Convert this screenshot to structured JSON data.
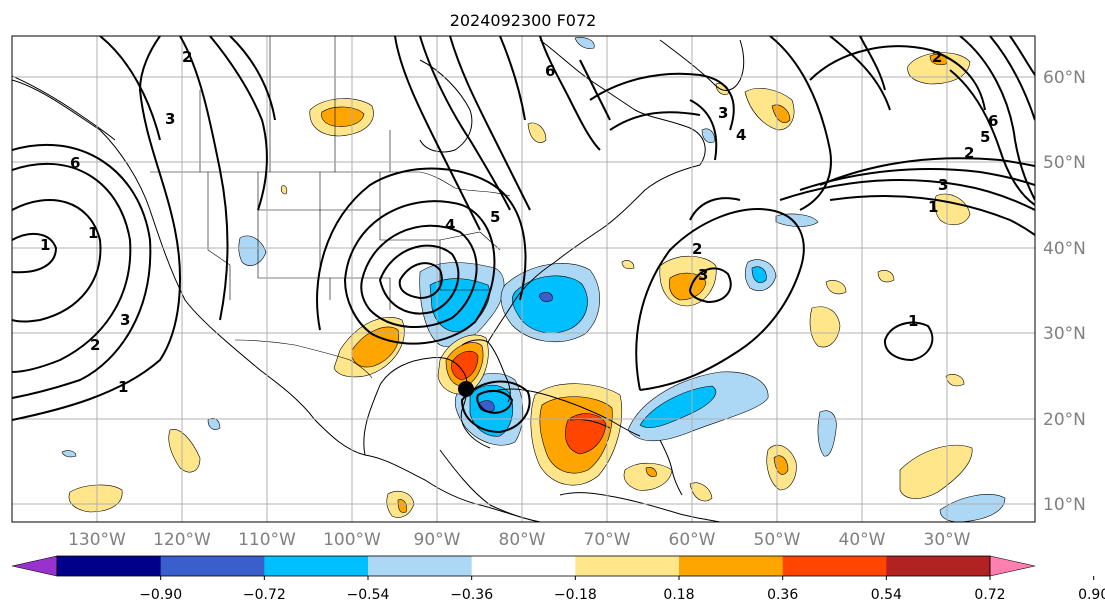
{
  "title": "2024092300 F072",
  "latitude_labels": [
    "60°N",
    "50°N",
    "40°N",
    "30°N",
    "20°N",
    "10°N"
  ],
  "longitude_labels": [
    "130°W",
    "120°W",
    "110°W",
    "100°W",
    "90°W",
    "80°W",
    "70°W",
    "60°W",
    "50°W",
    "40°W",
    "30°W"
  ],
  "contour_labels": [
    "6",
    "1",
    "2",
    "3",
    "1",
    "1",
    "2",
    "3",
    "4",
    "5",
    "6",
    "2",
    "3",
    "4",
    "5",
    "6",
    "1",
    "2",
    "3",
    "3",
    "1",
    "2"
  ],
  "colorbar": {
    "tick_labels": [
      "−0.90",
      "−0.72",
      "−0.54",
      "−0.36",
      "−0.18",
      "0.18",
      "0.36",
      "0.54",
      "0.72",
      "0.90"
    ],
    "colors": [
      "#9932cc",
      "#00008b",
      "#3a5fcd",
      "#00bfff",
      "#add8f5",
      "#ffffff",
      "#ffe68a",
      "#ffa500",
      "#ff4500",
      "#b22222",
      "#ff80b0"
    ]
  },
  "colors": {
    "contour": "#000000",
    "coastline": "#000000",
    "grid": "#b0b0b0",
    "marker": "#000000"
  },
  "marker": {
    "name": "storm-center-marker"
  }
}
